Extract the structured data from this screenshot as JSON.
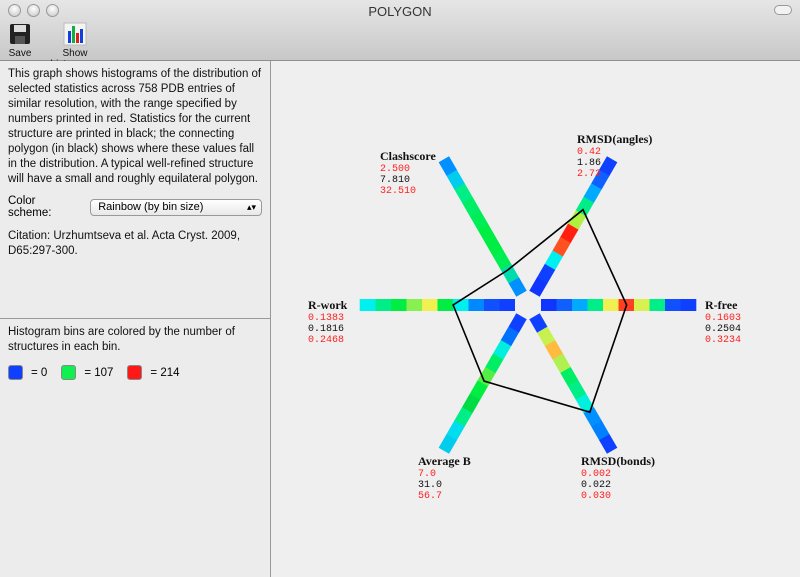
{
  "window": {
    "title": "POLYGON"
  },
  "toolbar": {
    "save_label": "Save",
    "histograms_label": "Show histograms"
  },
  "info": {
    "description": "This graph shows histograms of the distribution of selected statistics across 758 PDB entries of similar resolution, with the range specified by numbers printed in red.  Statistics for the current structure are printed in black; the connecting polygon (in black) shows where these values fall in the distribution. A typical well-refined structure will have a small and roughly equilateral polygon.",
    "color_scheme_label": "Color scheme:",
    "color_scheme_value": "Rainbow (by bin size)",
    "citation": "Citation: Urzhumtseva et al. Acta Cryst. 2009, D65:297-300."
  },
  "legend": {
    "text": "Histogram bins are colored by the number of structures in each bin.",
    "items": [
      {
        "color": "#1040ff",
        "label": "= 0"
      },
      {
        "color": "#10f050",
        "label": "= 107"
      },
      {
        "color": "#ff1818",
        "label": "= 214"
      }
    ]
  },
  "chart_data": {
    "type": "polygon-histogram",
    "axes": [
      {
        "name": "R-free",
        "min": "0.1603",
        "value": "0.2504",
        "max": "0.3234",
        "bins": [
          "#1035ff",
          "#1060ff",
          "#00aaff",
          "#00ee88",
          "#f0f050",
          "#ff4020",
          "#d8f050",
          "#00ee88",
          "#1050ff",
          "#1040ff"
        ]
      },
      {
        "name": "RMSD(angles)",
        "min": "0.42",
        "value": "1.86",
        "max": "2.72",
        "bins": [
          "#1035ff",
          "#1040ff",
          "#00f0f0",
          "#ff5020",
          "#ff2010",
          "#b0f040",
          "#00ee88",
          "#00aaff",
          "#1060ff",
          "#1040ff"
        ]
      },
      {
        "name": "Clashscore",
        "min": "2.500",
        "value": "7.810",
        "max": "32.510",
        "bins": [
          "#0090ff",
          "#00ddaa",
          "#00ee55",
          "#00ee44",
          "#00ee44",
          "#00ee55",
          "#00ee66",
          "#00ee88",
          "#00ccee",
          "#0090ff"
        ]
      },
      {
        "name": "R-work",
        "min": "0.1383",
        "value": "0.1816",
        "max": "0.2468",
        "bins": [
          "#1040ff",
          "#1050ff",
          "#0088ff",
          "#00f0f0",
          "#00ee44",
          "#f0f050",
          "#88f050",
          "#00ee44",
          "#00ee88",
          "#00f0f0"
        ]
      },
      {
        "name": "Average B",
        "min": "7.0",
        "value": "31.0",
        "max": "56.7",
        "bins": [
          "#1040ff",
          "#0070ff",
          "#00eedd",
          "#00ee66",
          "#55ee44",
          "#00ee44",
          "#00dd44",
          "#00ee88",
          "#00ddee",
          "#00ccee"
        ]
      },
      {
        "name": "RMSD(bonds)",
        "min": "0.002",
        "value": "0.022",
        "max": "0.030",
        "bins": [
          "#1040ff",
          "#c8f050",
          "#ffbb40",
          "#b0f050",
          "#00ee66",
          "#00ee88",
          "#00f0e0",
          "#0090ff",
          "#0080ff",
          "#1040ff"
        ]
      }
    ]
  }
}
